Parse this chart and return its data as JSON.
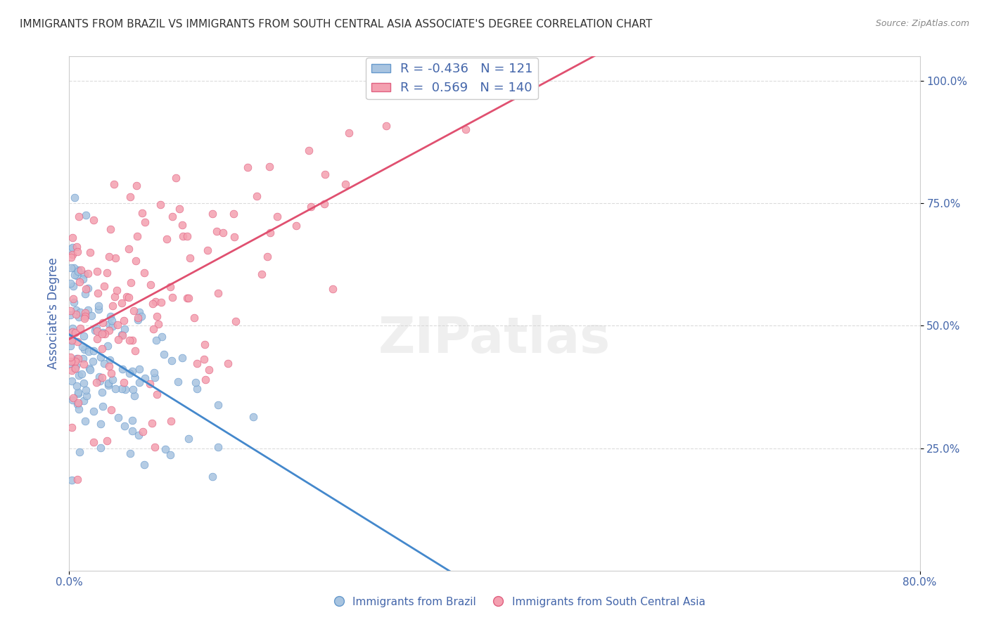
{
  "title": "IMMIGRANTS FROM BRAZIL VS IMMIGRANTS FROM SOUTH CENTRAL ASIA ASSOCIATE'S DEGREE CORRELATION CHART",
  "source": "Source: ZipAtlas.com",
  "xlabel": "",
  "ylabel": "Associate's Degree",
  "xmin": 0.0,
  "xmax": 0.8,
  "ymin": 0.0,
  "ymax": 1.05,
  "x_tick_labels": [
    "0.0%",
    "80.0%"
  ],
  "y_tick_labels": [
    "25.0%",
    "50.0%",
    "75.0%",
    "100.0%"
  ],
  "y_tick_values": [
    0.25,
    0.5,
    0.75,
    1.0
  ],
  "brazil_color": "#a8c4e0",
  "brazil_edge": "#6699cc",
  "sca_color": "#f4a0b0",
  "sca_edge": "#e06080",
  "brazil_R": -0.436,
  "brazil_N": 121,
  "sca_R": 0.569,
  "sca_N": 140,
  "brazil_line_color": "#4488cc",
  "sca_line_color": "#e05070",
  "watermark": "ZIPatlas",
  "legend_label_brazil": "Immigrants from Brazil",
  "legend_label_sca": "Immigrants from South Central Asia",
  "background_color": "#ffffff",
  "grid_color": "#cccccc",
  "title_color": "#333333",
  "axis_label_color": "#4466aa",
  "tick_label_color": "#4466aa"
}
